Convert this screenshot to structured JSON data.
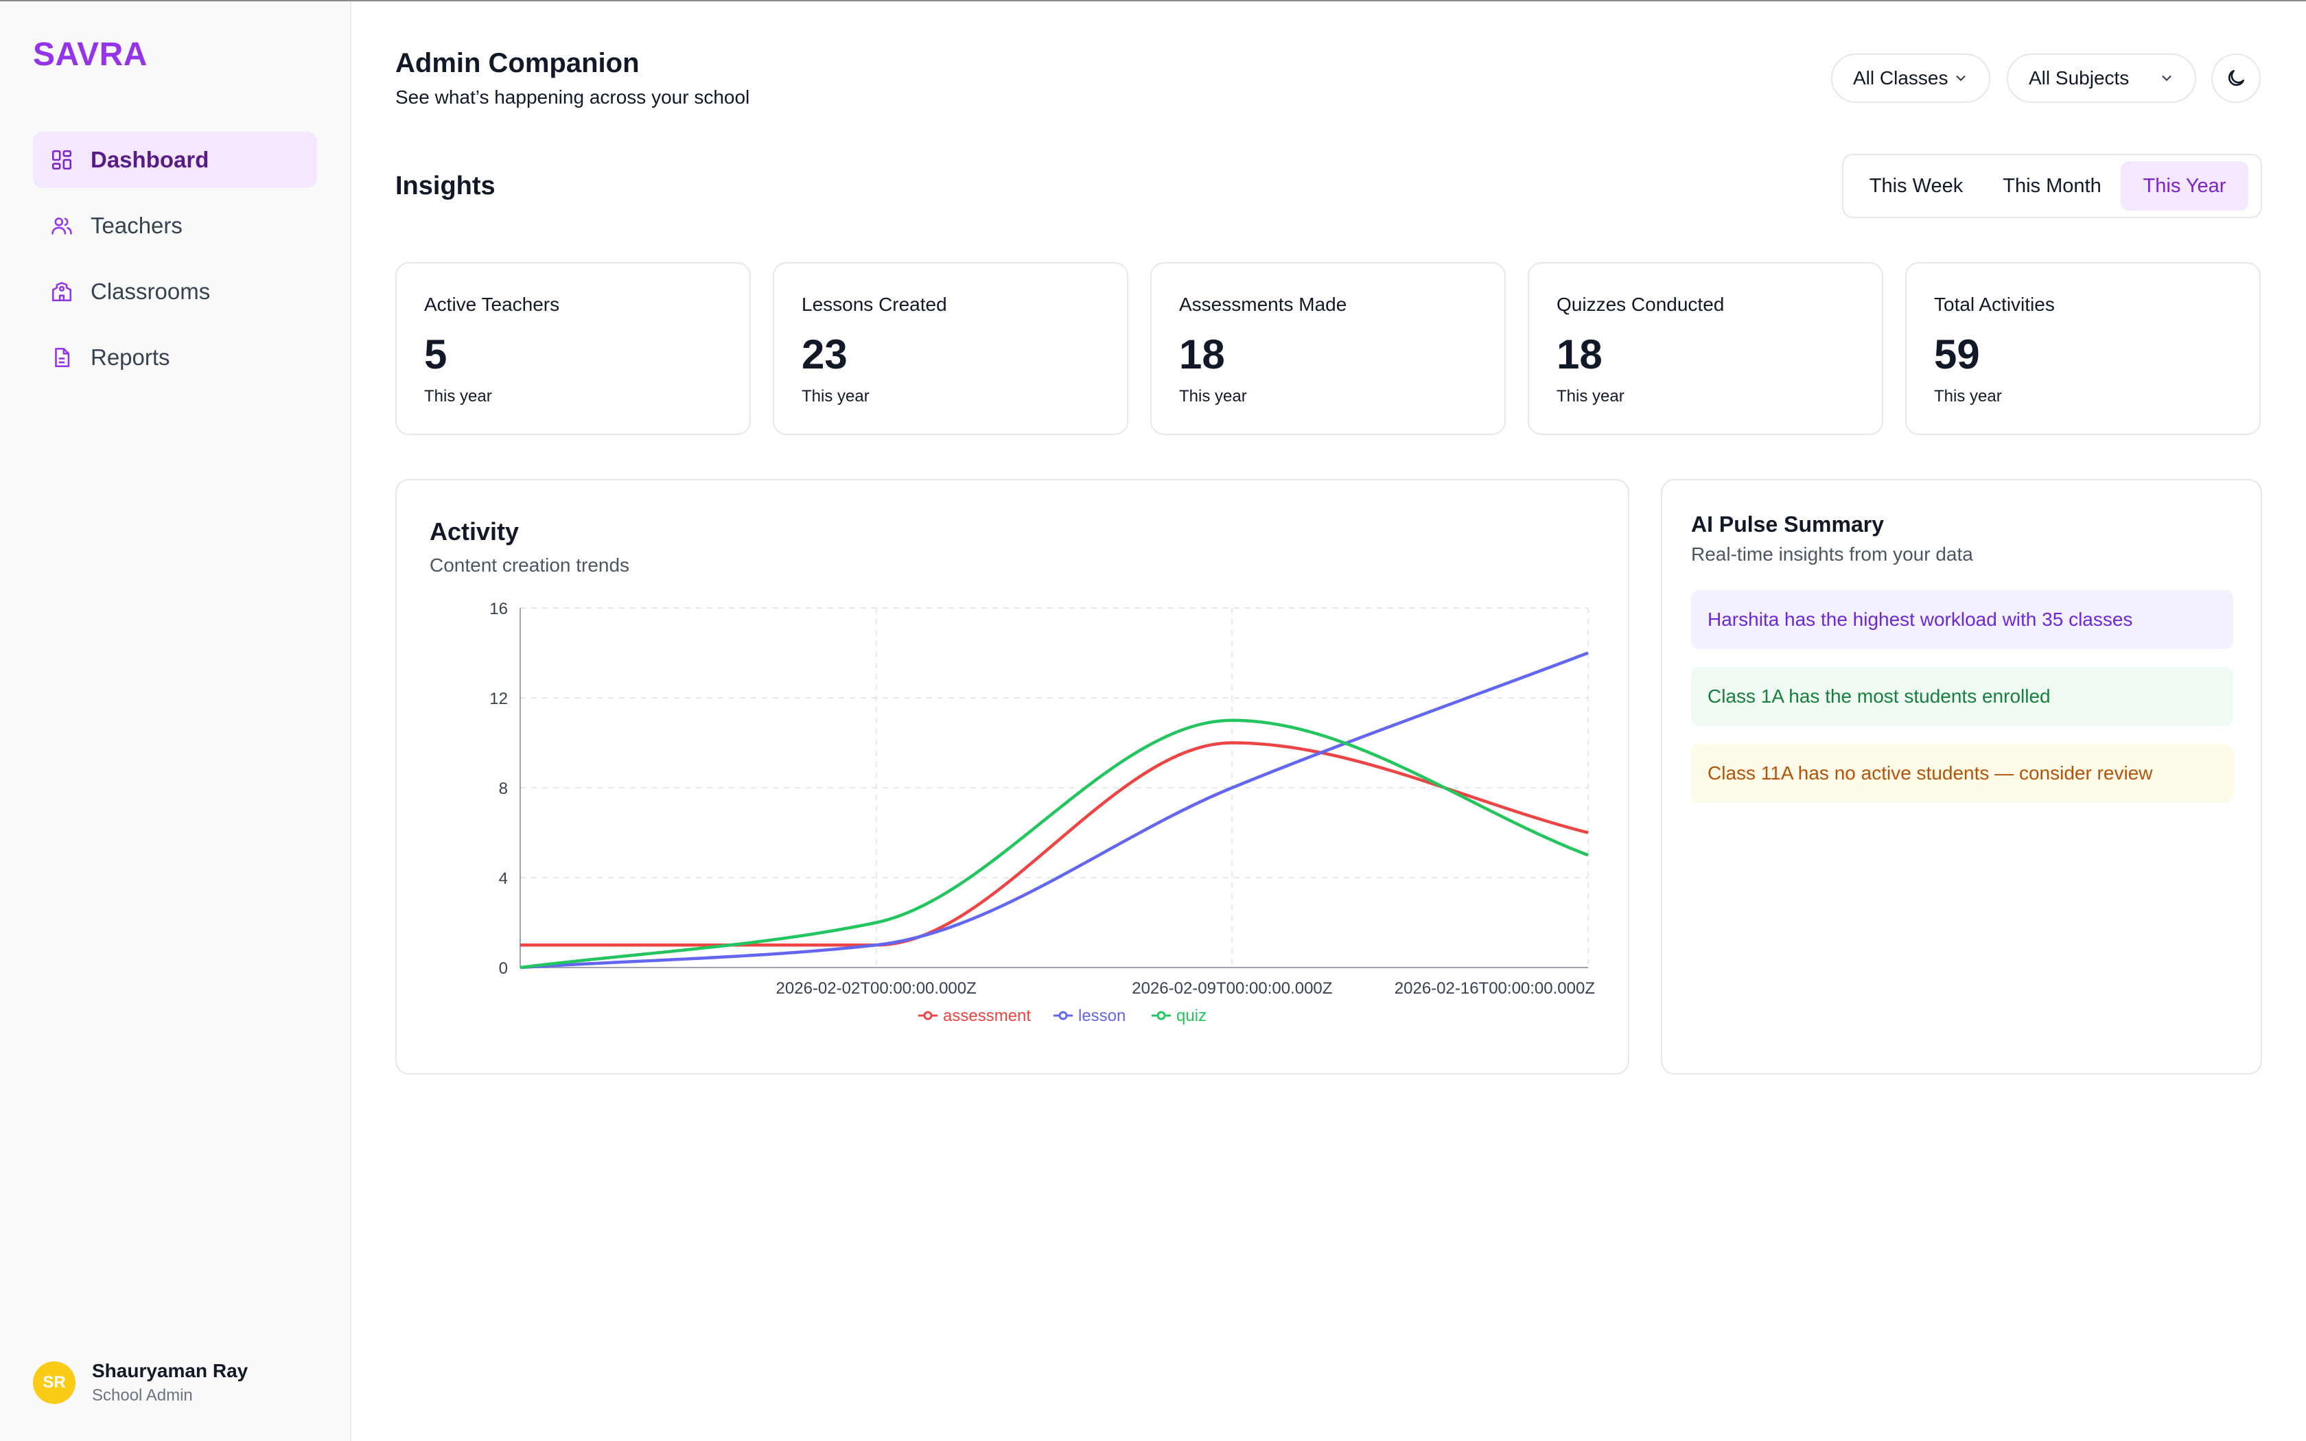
{
  "sidebar": {
    "logo": "SAVRA",
    "items": [
      {
        "label": "Dashboard",
        "icon": "grid-icon",
        "active": true
      },
      {
        "label": "Teachers",
        "icon": "users-icon",
        "active": false
      },
      {
        "label": "Classrooms",
        "icon": "school-icon",
        "active": false
      },
      {
        "label": "Reports",
        "icon": "document-icon",
        "active": false
      }
    ],
    "user": {
      "initials": "SR",
      "name": "Shauryaman Ray",
      "role": "School Admin"
    }
  },
  "header": {
    "title": "Admin Companion",
    "subtitle": "See what’s happening across your school",
    "class_filter": "All Classes",
    "subject_filter": "All Subjects",
    "theme_icon": "moon-icon"
  },
  "insights": {
    "title": "Insights",
    "periods": [
      "This Week",
      "This Month",
      "This Year"
    ],
    "selected_period": "This Year",
    "stats": [
      {
        "label": "Active Teachers",
        "value": "5",
        "sub": "This year"
      },
      {
        "label": "Lessons Created",
        "value": "23",
        "sub": "This year"
      },
      {
        "label": "Assessments Made",
        "value": "18",
        "sub": "This year"
      },
      {
        "label": "Quizzes Conducted",
        "value": "18",
        "sub": "This year"
      },
      {
        "label": "Total Activities",
        "value": "59",
        "sub": "This year"
      }
    ]
  },
  "activity": {
    "title": "Activity",
    "subtitle": "Content creation trends"
  },
  "chart_data": {
    "type": "line",
    "title": "",
    "xlabel": "",
    "ylabel": "",
    "ylim": [
      0,
      16
    ],
    "yticks": [
      "0",
      "4",
      "8",
      "12",
      "16"
    ],
    "x": [
      "2026-01-26T00:00:00.000Z",
      "2026-02-02T00:00:00.000Z",
      "2026-02-09T00:00:00.000Z",
      "2026-02-16T00:00:00.000Z"
    ],
    "x_tick_labels": [
      "",
      "2026-02-02T00:00:00.000Z",
      "2026-02-09T00:00:00.000Z",
      "2026-02-16T00:00:00.000Z"
    ],
    "grid": true,
    "legend": "bottom",
    "series": [
      {
        "name": "assessment",
        "color": "#ef4444",
        "values": [
          1,
          1,
          10,
          6
        ]
      },
      {
        "name": "lesson",
        "color": "#6366f1",
        "values": [
          0,
          1,
          8,
          14
        ]
      },
      {
        "name": "quiz",
        "color": "#22c55e",
        "values": [
          0,
          2,
          11,
          5
        ]
      }
    ]
  },
  "pulse": {
    "title": "AI Pulse Summary",
    "subtitle": "Real-time insights from your data",
    "items": [
      "Harshita has the highest workload with 35 classes",
      "Class 1A has the most students enrolled",
      "Class 11A has no active students — consider review"
    ]
  },
  "colors": {
    "accent": "#9333ea",
    "active_bg": "#f3e8ff"
  }
}
